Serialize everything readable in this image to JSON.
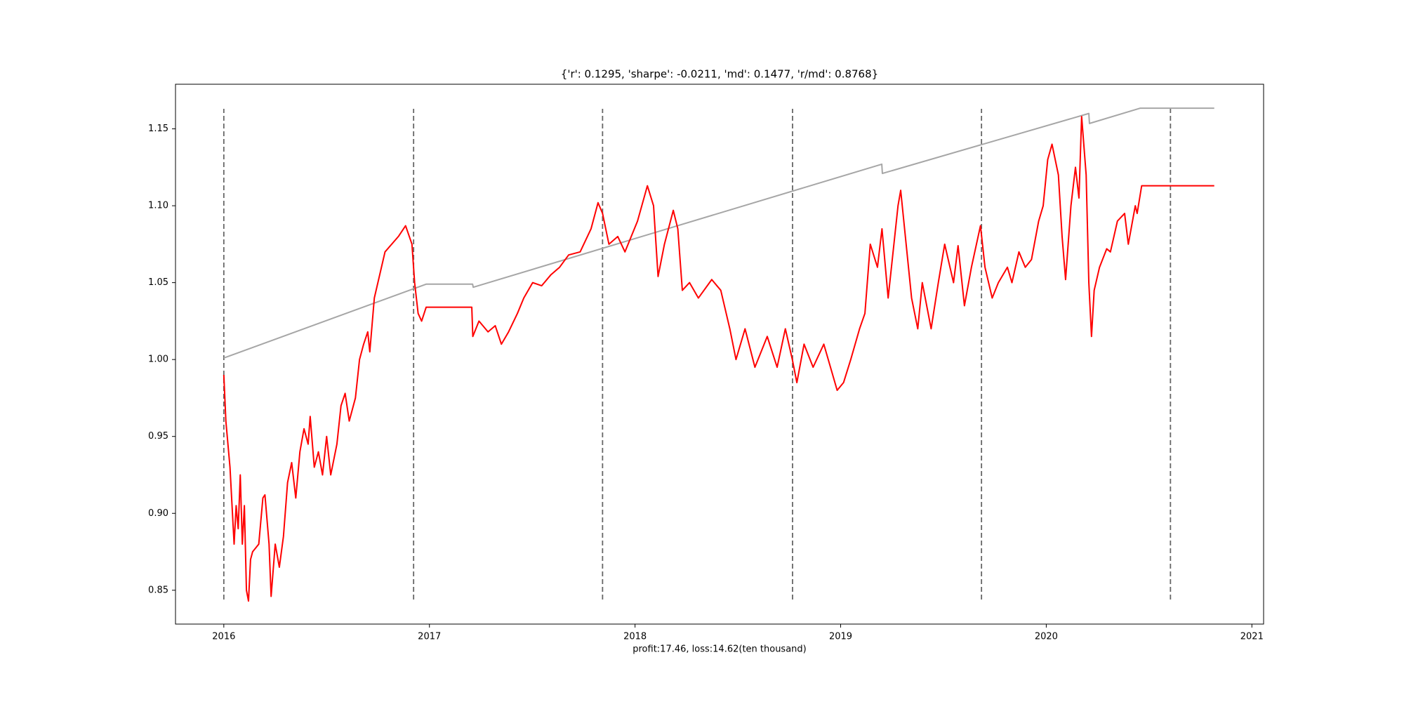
{
  "chart_data": {
    "type": "line",
    "title": "{'r': 0.1295, 'sharpe': -0.0211, 'md': 0.1477, 'r/md': 0.8768}",
    "x_label": "profit:17.46, loss:14.62(ten thousand)",
    "xlim": [
      2015.765,
      2021.057
    ],
    "ylim": [
      0.828,
      1.179
    ],
    "xticks": [
      2016,
      2017,
      2018,
      2019,
      2020,
      2021
    ],
    "yticks": [
      {
        "value": 0.85,
        "label": "0.85"
      },
      {
        "value": 0.9,
        "label": "0.90"
      },
      {
        "value": 0.95,
        "label": "0.95"
      },
      {
        "value": 1.0,
        "label": "1.00"
      },
      {
        "value": 1.05,
        "label": "1.05"
      },
      {
        "value": 1.1,
        "label": "1.10"
      },
      {
        "value": 1.15,
        "label": "1.15"
      }
    ],
    "vlines": {
      "x": [
        2016.0,
        2016.923,
        2017.842,
        2018.766,
        2019.685,
        2020.604
      ],
      "ymin": 0.844,
      "ymax": 1.163,
      "color": "#666666"
    },
    "series": [
      {
        "color": "#a6a6a6",
        "x": [
          2016.0,
          2016.984,
          2017.21,
          2017.213,
          2019.2,
          2019.203,
          2020.207,
          2020.21,
          2020.456,
          2020.817
        ],
        "values": [
          1.001,
          1.049,
          1.049,
          1.047,
          1.127,
          1.121,
          1.16,
          1.1535,
          1.1634,
          1.1634
        ]
      },
      {
        "color": "#ff0000",
        "x": [
          2016.0,
          2016.01,
          2016.03,
          2016.05,
          2016.06,
          2016.07,
          2016.08,
          2016.09,
          2016.1,
          2016.11,
          2016.12,
          2016.13,
          2016.14,
          2016.17,
          2016.19,
          2016.2,
          2016.22,
          2016.23,
          2016.25,
          2016.27,
          2016.29,
          2016.31,
          2016.33,
          2016.35,
          2016.37,
          2016.39,
          2016.41,
          2016.42,
          2016.44,
          2016.46,
          2016.48,
          2016.5,
          2016.52,
          2016.55,
          2016.57,
          2016.59,
          2016.61,
          2016.64,
          2016.66,
          2016.68,
          2016.7,
          2016.71,
          2016.732,
          2016.784,
          2016.849,
          2016.884,
          2016.915,
          2016.928,
          2016.945,
          2016.962,
          2016.984,
          2017.206,
          2017.211,
          2017.241,
          2017.285,
          2017.32,
          2017.35,
          2017.385,
          2017.428,
          2017.459,
          2017.502,
          2017.546,
          2017.59,
          2017.633,
          2017.677,
          2017.733,
          2017.786,
          2017.82,
          2017.842,
          2017.873,
          2017.916,
          2017.951,
          2018.012,
          2018.06,
          2018.09,
          2018.112,
          2018.143,
          2018.186,
          2018.208,
          2018.23,
          2018.265,
          2018.308,
          2018.373,
          2018.417,
          2018.461,
          2018.491,
          2018.535,
          2018.583,
          2018.643,
          2018.691,
          2018.731,
          2018.765,
          2018.787,
          2018.822,
          2018.866,
          2018.918,
          2018.983,
          2019.014,
          2019.049,
          2019.092,
          2019.118,
          2019.144,
          2019.179,
          2019.201,
          2019.231,
          2019.279,
          2019.292,
          2019.345,
          2019.375,
          2019.397,
          2019.44,
          2019.475,
          2019.506,
          2019.549,
          2019.571,
          2019.602,
          2019.636,
          2019.68,
          2019.702,
          2019.737,
          2019.767,
          2019.811,
          2019.833,
          2019.867,
          2019.898,
          2019.928,
          2019.963,
          2019.985,
          2020.007,
          2020.028,
          2020.059,
          2020.077,
          2020.094,
          2020.12,
          2020.142,
          2020.159,
          2020.172,
          2020.194,
          2020.207,
          2020.22,
          2020.233,
          2020.259,
          2020.294,
          2020.312,
          2020.346,
          2020.381,
          2020.399,
          2020.433,
          2020.442,
          2020.464,
          2020.817
        ],
        "values": [
          0.99,
          0.96,
          0.93,
          0.88,
          0.905,
          0.89,
          0.925,
          0.88,
          0.905,
          0.85,
          0.843,
          0.87,
          0.875,
          0.88,
          0.91,
          0.912,
          0.88,
          0.846,
          0.88,
          0.865,
          0.885,
          0.92,
          0.933,
          0.91,
          0.94,
          0.955,
          0.945,
          0.963,
          0.93,
          0.94,
          0.925,
          0.95,
          0.925,
          0.945,
          0.97,
          0.978,
          0.96,
          0.975,
          1.0,
          1.01,
          1.018,
          1.005,
          1.04,
          1.07,
          1.08,
          1.087,
          1.075,
          1.05,
          1.03,
          1.025,
          1.034,
          1.034,
          1.015,
          1.025,
          1.018,
          1.022,
          1.01,
          1.018,
          1.03,
          1.04,
          1.05,
          1.048,
          1.055,
          1.06,
          1.068,
          1.07,
          1.085,
          1.102,
          1.095,
          1.075,
          1.08,
          1.07,
          1.09,
          1.113,
          1.1,
          1.054,
          1.075,
          1.097,
          1.085,
          1.045,
          1.05,
          1.04,
          1.052,
          1.045,
          1.02,
          1.0,
          1.02,
          0.995,
          1.015,
          0.995,
          1.02,
          1.0,
          0.985,
          1.01,
          0.995,
          1.01,
          0.98,
          0.985,
          1.0,
          1.02,
          1.03,
          1.075,
          1.06,
          1.085,
          1.04,
          1.1,
          1.11,
          1.04,
          1.02,
          1.05,
          1.02,
          1.05,
          1.075,
          1.05,
          1.074,
          1.035,
          1.06,
          1.087,
          1.06,
          1.04,
          1.05,
          1.06,
          1.05,
          1.07,
          1.06,
          1.065,
          1.09,
          1.1,
          1.13,
          1.14,
          1.12,
          1.08,
          1.052,
          1.1,
          1.125,
          1.105,
          1.158,
          1.12,
          1.05,
          1.015,
          1.045,
          1.06,
          1.072,
          1.07,
          1.09,
          1.095,
          1.075,
          1.1,
          1.095,
          1.113,
          1.113
        ]
      }
    ]
  }
}
